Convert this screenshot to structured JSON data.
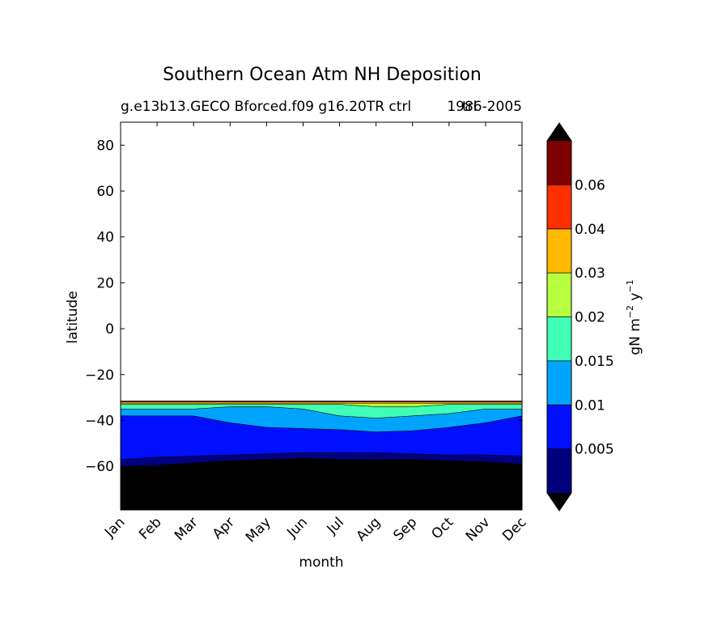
{
  "chart_data": {
    "type": "heatmap",
    "title": "Southern Ocean Atm NH Deposition",
    "subtitle_left": "g.e13b13.GECO Bforced.f09 g16.20TR ctrl",
    "subtitle_right": "1986-2005",
    "subtitle_overlap": "trl",
    "xlabel": "month",
    "ylabel": "latitude",
    "x_categories": [
      "Jan",
      "Feb",
      "Mar",
      "Apr",
      "May",
      "Jun",
      "Jul",
      "Aug",
      "Sep",
      "Oct",
      "Nov",
      "Dec"
    ],
    "xlim": [
      0,
      11
    ],
    "ylim": [
      -79,
      90
    ],
    "y_ticks": [
      80,
      60,
      40,
      20,
      0,
      -20,
      -40,
      -60
    ],
    "y_tick_labels": [
      "80",
      "60",
      "40",
      "20",
      "0",
      "−20",
      "−40",
      "−60"
    ],
    "colorbar": {
      "label": "gN m⁻² y⁻¹",
      "label_base": "gN m",
      "label_exp1": "−2",
      "label_mid": " y",
      "label_exp2": "−1",
      "levels": [
        0,
        0.005,
        0.01,
        0.015,
        0.02,
        0.03,
        0.04,
        0.06,
        0.08
      ],
      "tick_labels": [
        "0.005",
        "0.01",
        "0.015",
        "0.02",
        "0.03",
        "0.04",
        "0.06"
      ],
      "colors": [
        "#00007f",
        "#0010ff",
        "#00a4ff",
        "#40ffb7",
        "#b7ff40",
        "#ffb900",
        "#ff3000",
        "#7f0000"
      ],
      "under_color": "#000000",
      "over_color": "#000000",
      "extend": "both"
    },
    "contour_boundaries": {
      "description": "latitude of each contour level boundary per month (Jan..Dec)",
      "under_top": [
        -60,
        -59.5,
        -58.5,
        -57.5,
        -57,
        -56.5,
        -57,
        -57,
        -57,
        -57.5,
        -58,
        -59
      ],
      "b005": [
        -57,
        -56,
        -55.5,
        -55,
        -54.5,
        -54,
        -54,
        -54,
        -54.5,
        -55,
        -55,
        -55.5
      ],
      "b01": [
        -38,
        -38,
        -38,
        -41,
        -43,
        -43.5,
        -44,
        -45,
        -44.5,
        -43,
        -41,
        -38
      ],
      "b015": [
        -35,
        -35,
        -35,
        -34,
        -34,
        -35,
        -38,
        -39,
        -38,
        -37,
        -35,
        -35
      ],
      "b02": [
        -33,
        -33,
        -33,
        -33,
        -33,
        -33,
        -33,
        -34,
        -34,
        -33,
        -33,
        -33
      ],
      "b03": [
        -32.5,
        -32.5,
        -32.5,
        -32.5,
        -32.5,
        -32.5,
        -32.5,
        -32.5,
        -32.5,
        -32.5,
        -32.5,
        -32.5
      ],
      "b04": [
        -32,
        -32,
        -32,
        -32,
        -32,
        -32,
        -32,
        -32,
        -32,
        -32,
        -32,
        -32
      ],
      "b06": [
        -31.6,
        -31.6,
        -31.6,
        -31.6,
        -31.6,
        -31.6,
        -31.6,
        -31.6,
        -31.6,
        -31.6,
        -31.6,
        -31.6
      ],
      "data_top": -31.5
    }
  }
}
